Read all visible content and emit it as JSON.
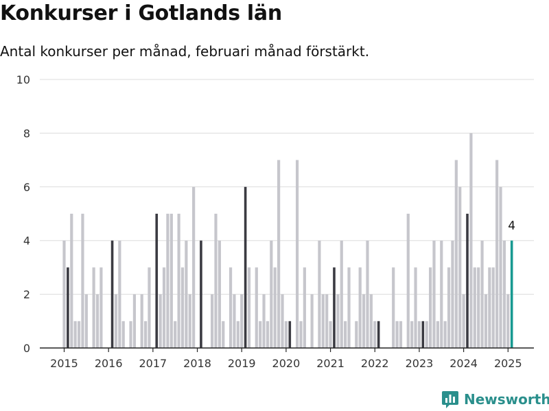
{
  "title": "Konkurser i Gotlands län",
  "subtitle": "Antal konkurser per månad, februari månad förstärkt.",
  "brand": {
    "name": "Newsworthy",
    "icon": "bar-chart-icon",
    "color": "#2a8f8c"
  },
  "colors": {
    "normal": "#c6c6cc",
    "february": "#3b3b42",
    "latest": "#189a91"
  },
  "chart_data": {
    "type": "bar",
    "title": "Konkurser i Gotlands län",
    "subtitle": "Antal konkurser per månad, februari månad förstärkt.",
    "xlabel": "",
    "ylabel": "",
    "ylim": [
      0,
      10
    ],
    "yticks": [
      0,
      2,
      4,
      6,
      8,
      10
    ],
    "xticks": [
      "2015",
      "2016",
      "2017",
      "2018",
      "2019",
      "2020",
      "2021",
      "2022",
      "2023",
      "2024",
      "2025"
    ],
    "grid": true,
    "start": "2015-01",
    "highlight": "february",
    "annotation": {
      "month": "2025-02",
      "text": "4"
    },
    "series": [
      {
        "values": [
          4,
          3,
          5,
          1,
          1,
          5,
          2,
          0,
          3,
          2,
          3,
          0,
          0,
          4,
          2,
          4,
          1,
          0,
          1,
          2,
          0,
          2,
          1,
          3,
          0,
          5,
          2,
          3,
          5,
          5,
          1,
          5,
          3,
          4,
          2,
          6,
          0,
          4,
          0,
          0,
          2,
          5,
          4,
          1,
          0,
          3,
          2,
          1,
          2,
          6,
          3,
          0,
          3,
          1,
          2,
          1,
          4,
          3,
          7,
          2,
          1,
          1,
          0,
          7,
          1,
          3,
          0,
          2,
          0,
          4,
          2,
          2,
          1,
          3,
          2,
          4,
          1,
          3,
          0,
          1,
          3,
          2,
          4,
          2,
          1,
          1,
          0,
          0,
          0,
          3,
          1,
          1,
          0,
          5,
          1,
          3,
          1,
          1,
          1,
          3,
          4,
          1,
          4,
          1,
          3,
          4,
          7,
          6,
          2,
          5,
          8,
          3,
          3,
          4,
          2,
          3,
          3,
          7,
          6,
          4,
          2,
          4
        ]
      }
    ]
  }
}
